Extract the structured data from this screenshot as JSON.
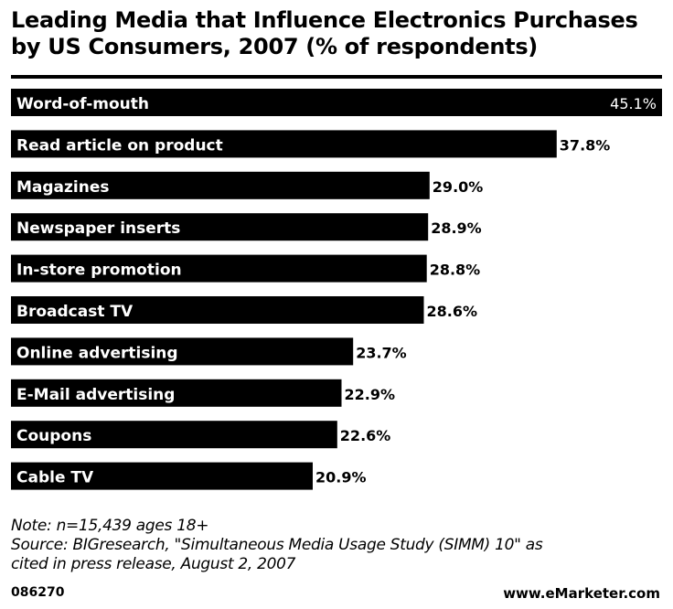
{
  "chart_data": {
    "type": "bar",
    "orientation": "horizontal",
    "title": "Leading Media that Influence Electronics Purchases by US Consumers, 2007 (% of respondents)",
    "categories": [
      "Word-of-mouth",
      "Read article on product",
      "Magazines",
      "Newspaper inserts",
      "In-store promotion",
      "Broadcast TV",
      "Online advertising",
      "E-Mail advertising",
      "Coupons",
      "Cable TV"
    ],
    "values": [
      45.1,
      37.8,
      29.0,
      28.9,
      28.8,
      28.6,
      23.7,
      22.9,
      22.6,
      20.9
    ],
    "value_labels": [
      "45.1%",
      "37.8%",
      "29.0%",
      "28.9%",
      "28.8%",
      "28.6%",
      "23.7%",
      "22.9%",
      "22.6%",
      "20.9%"
    ],
    "xlim": [
      0,
      45.1
    ],
    "bar_color": "#000000",
    "label_color": "#ffffff",
    "grid": false,
    "legend": "none"
  },
  "notes": {
    "note": "Note: n=15,439 ages 18+",
    "source_line1": "Source: BIGresearch, \"Simultaneous Media Usage Study (SIMM) 10\" as",
    "source_line2": "cited in press release, August 2, 2007"
  },
  "footer": {
    "chart_id": "086270",
    "brand": "www.eMarketer.com"
  }
}
